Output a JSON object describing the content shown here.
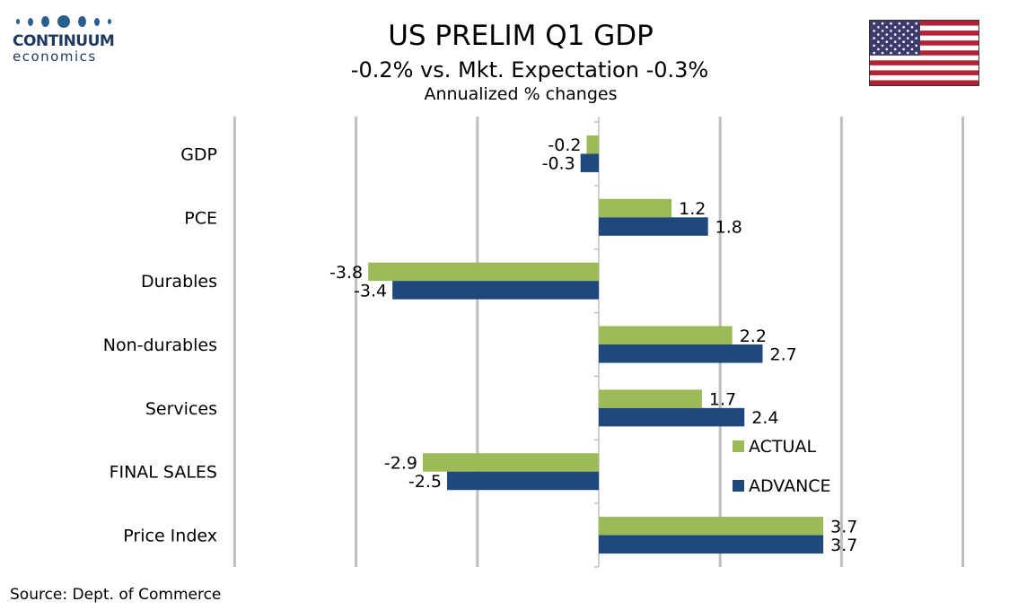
{
  "logo": {
    "name": "CONTINUUM",
    "sub": "economics"
  },
  "source": "Source: Dept. of Commerce",
  "colors": {
    "actual": "#9bbb59",
    "advance": "#1f497d",
    "grid": "#bfbfbf"
  },
  "chart_data": {
    "type": "bar",
    "orientation": "horizontal",
    "title": "US PRELIM Q1 GDP",
    "subtitle": "-0.2% vs. Mkt. Expectation -0.3%",
    "subtitle2": "Annualized % changes",
    "categories": [
      "GDP",
      "PCE",
      "Durables",
      "Non-durables",
      "Services",
      "FINAL SALES",
      "Price Index"
    ],
    "series": [
      {
        "name": "ACTUAL",
        "color": "#9bbb59",
        "values": [
          -0.2,
          1.2,
          -3.8,
          2.2,
          1.7,
          -2.9,
          3.7
        ],
        "labels": [
          "-0.2",
          "1.2",
          "-3.8",
          "2.2",
          "1.7",
          "-2.9",
          "3.7"
        ]
      },
      {
        "name": "ADVANCE",
        "color": "#1f497d",
        "values": [
          -0.3,
          1.8,
          -3.4,
          2.7,
          2.4,
          -2.5,
          3.7
        ],
        "labels": [
          "-0.3",
          "1.8",
          "-3.4",
          "2.7",
          "2.4",
          "-2.5",
          "3.7"
        ]
      }
    ],
    "xlim": [
      -6,
      6
    ],
    "grid": true,
    "tick_labels_shown": false,
    "legend_position": "lower-right"
  }
}
